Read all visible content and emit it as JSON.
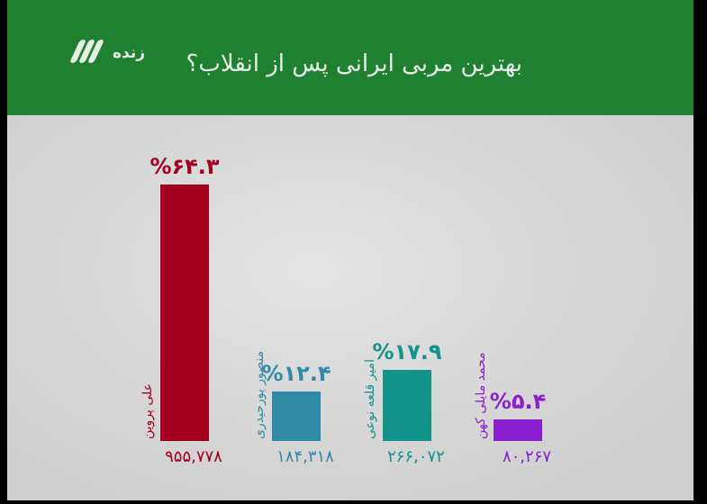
{
  "header": {
    "logo_text": "زنده",
    "title": "بهترین مربی ایرانی پس از انقلاب؟"
  },
  "chart_data": {
    "type": "bar",
    "title": "بهترین مربی ایرانی پس از انقلاب؟",
    "categories": [
      "علی پروین",
      "منصور پورحیدری",
      "امیر قلعه نوعی",
      "محمد مایلی کهن"
    ],
    "values": [
      64.3,
      12.4,
      17.9,
      5.4
    ],
    "percent_labels": [
      "%۶۴.۳",
      "%۱۲.۴",
      "%۱۷.۹",
      "%۵.۴"
    ],
    "vote_labels": [
      "۹۵۵,۷۷۸",
      "۱۸۴,۳۱۸",
      "۲۶۶,۰۷۲",
      "۸۰,۲۶۷"
    ],
    "colors": [
      "#a3001f",
      "#2f8aa8",
      "#12938c",
      "#8a1fd0"
    ],
    "ylim": [
      0,
      64.3
    ],
    "grid": false
  }
}
